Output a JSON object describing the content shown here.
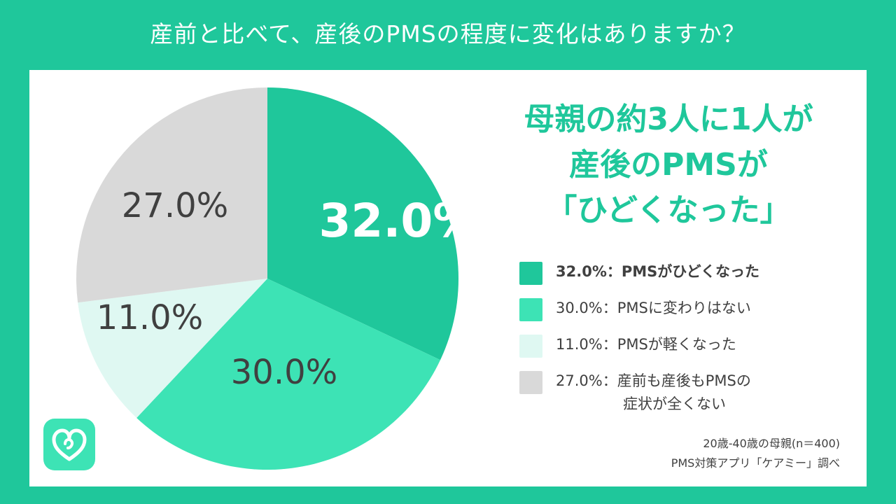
{
  "title": "産前と比べて、産後のPMSの程度に変化はありますか？",
  "headline": [
    "母親の約3人に1人が",
    "産後のPMSが",
    "「ひどくなった」"
  ],
  "note": [
    "20歳-40歳の母親(n＝400)",
    "PMS対策アプリ「ケアミー」調べ"
  ],
  "logo_icon": "heart-logo-icon",
  "colors": {
    "background": "#1fc79b",
    "accent": "#1fc79b"
  },
  "chart_data": {
    "type": "pie",
    "unit": "%",
    "slices": [
      {
        "label": "PMSがひどくなった",
        "value": 32.0,
        "value_label": "32.0%",
        "color": "#1fc79b",
        "label_color": "#ffffff",
        "emphasis": true
      },
      {
        "label": "PMSに変わりはない",
        "value": 30.0,
        "value_label": "30.0%",
        "color": "#3de3b5",
        "label_color": "#404040",
        "emphasis": false
      },
      {
        "label": "PMSが軽くなった",
        "value": 11.0,
        "value_label": "11.0%",
        "color": "#dff8f2",
        "label_color": "#404040",
        "emphasis": false
      },
      {
        "label": "産前も産後もPMSの症状が全くない",
        "value": 27.0,
        "value_label": "27.0%",
        "color": "#d9d9d9",
        "label_color": "#404040",
        "emphasis": false
      }
    ],
    "legend": [
      {
        "text": "32.0%：PMSがひどくなった",
        "text2": ""
      },
      {
        "text": "30.0%：PMSに変わりはない",
        "text2": ""
      },
      {
        "text": "11.0%：PMSが軽くなった",
        "text2": ""
      },
      {
        "text": "27.0%：産前も産後もPMSの",
        "text2": "症状が全くない"
      }
    ]
  }
}
